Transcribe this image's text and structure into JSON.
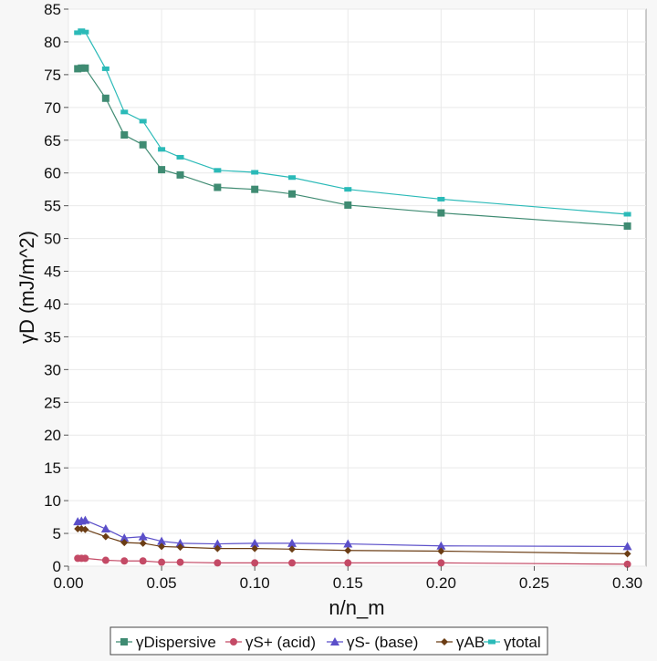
{
  "chart_data": {
    "type": "line",
    "title": "",
    "xlabel": "n/n_m",
    "ylabel": "γD (mJ/m^2)",
    "xlim": [
      0,
      0.31
    ],
    "ylim": [
      0,
      85
    ],
    "x_ticks": [
      "0.00",
      "0.05",
      "0.10",
      "0.15",
      "0.20",
      "0.25",
      "0.30"
    ],
    "y_ticks": [
      "0",
      "5",
      "10",
      "15",
      "20",
      "25",
      "30",
      "35",
      "40",
      "45",
      "50",
      "55",
      "60",
      "65",
      "70",
      "75",
      "80",
      "85"
    ],
    "x_tick_values": [
      0,
      0.05,
      0.1,
      0.15,
      0.2,
      0.25,
      0.3
    ],
    "y_tick_values": [
      0,
      5,
      10,
      15,
      20,
      25,
      30,
      35,
      40,
      45,
      50,
      55,
      60,
      65,
      70,
      75,
      80,
      85
    ],
    "grid": true,
    "legend_position": "bottom",
    "x": [
      0.005,
      0.007,
      0.009,
      0.02,
      0.03,
      0.04,
      0.05,
      0.06,
      0.08,
      0.1,
      0.12,
      0.15,
      0.2,
      0.3
    ],
    "series": [
      {
        "name": "γDispersive",
        "color": "#3f8b72",
        "marker": "square",
        "values": [
          75.9,
          76.0,
          76.0,
          71.4,
          65.8,
          64.3,
          60.5,
          59.7,
          57.8,
          57.5,
          56.8,
          55.1,
          53.9,
          51.9
        ]
      },
      {
        "name": "γS+ (acid)",
        "color": "#c44a66",
        "marker": "circle",
        "values": [
          1.2,
          1.2,
          1.2,
          0.9,
          0.8,
          0.8,
          0.6,
          0.6,
          0.5,
          0.5,
          0.5,
          0.5,
          0.5,
          0.3
        ]
      },
      {
        "name": "γS- (base)",
        "color": "#5b4fc9",
        "marker": "triangle",
        "values": [
          6.8,
          6.9,
          7.0,
          5.7,
          4.3,
          4.5,
          3.8,
          3.5,
          3.4,
          3.5,
          3.5,
          3.4,
          3.1,
          3.0
        ]
      },
      {
        "name": "γAB",
        "color": "#6b3d14",
        "marker": "diamond",
        "values": [
          5.7,
          5.7,
          5.6,
          4.5,
          3.6,
          3.5,
          3.0,
          2.9,
          2.7,
          2.7,
          2.6,
          2.4,
          2.3,
          1.9
        ]
      },
      {
        "name": "γtotal",
        "color": "#2bbab8",
        "marker": "rect",
        "values": [
          81.4,
          81.7,
          81.5,
          75.9,
          69.3,
          67.9,
          63.6,
          62.4,
          60.4,
          60.1,
          59.3,
          57.5,
          56.0,
          53.7
        ]
      }
    ]
  }
}
